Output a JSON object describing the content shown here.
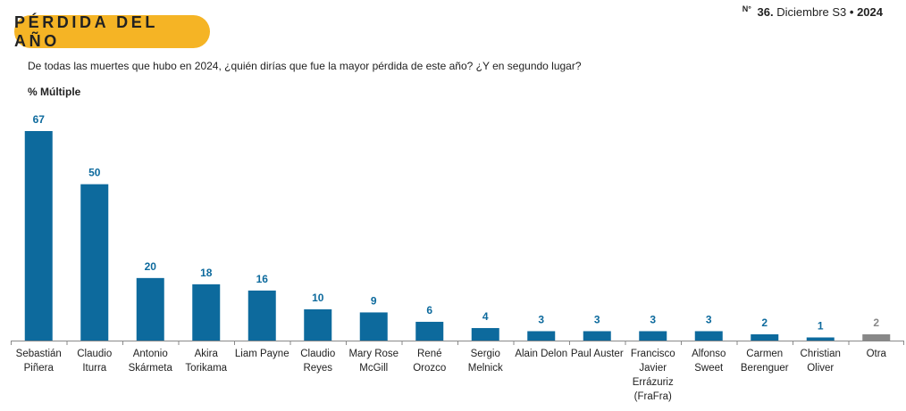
{
  "header": {
    "title": "PÉRDIDA DEL AÑO",
    "issue_prefix": "N°",
    "issue_number": "36.",
    "issue_period": "Diciembre S3",
    "issue_separator": "•",
    "issue_year": "2024"
  },
  "colors": {
    "accent": "#f5b425",
    "bar": "#0d6a9d",
    "bar_other": "#888888",
    "value_label": "#0d6a9d",
    "value_label_other": "#888888"
  },
  "chart_data": {
    "type": "bar",
    "title": "De todas las muertes que hubo en 2024, ¿quién dirías que fue la mayor pérdida de este año? ¿Y en segundo lugar?",
    "subtitle": "% Múltiple",
    "categories": [
      [
        "Sebastián",
        "Piñera"
      ],
      [
        "Claudio",
        "Iturra"
      ],
      [
        "Antonio",
        "Skármeta"
      ],
      [
        "Akira",
        "Torikama"
      ],
      [
        "Liam Payne"
      ],
      [
        "Claudio",
        "Reyes"
      ],
      [
        "Mary Rose",
        "McGill"
      ],
      [
        "René",
        "Orozco"
      ],
      [
        "Sergio",
        "Melnick"
      ],
      [
        "Alain Delon"
      ],
      [
        "Paul Auster"
      ],
      [
        "Francisco",
        "Javier",
        "Errázuriz",
        "(FraFra)"
      ],
      [
        "Alfonso",
        "Sweet"
      ],
      [
        "Carmen",
        "Berenguer"
      ],
      [
        "Christian",
        "Oliver"
      ],
      [
        "Otra"
      ]
    ],
    "values": [
      67,
      50,
      20,
      18,
      16,
      10,
      9,
      6,
      4,
      3,
      3,
      3,
      3,
      2,
      1,
      2
    ],
    "highlight_other_index": 15,
    "ylim": [
      0,
      67
    ],
    "grid": false,
    "legend": "none"
  }
}
